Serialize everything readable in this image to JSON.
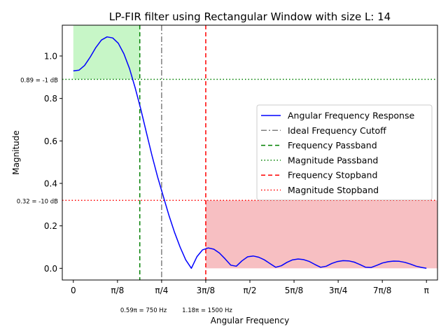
{
  "chart_data": {
    "type": "line",
    "title": "LP-FIR filter using Rectangular Window with size L: 14",
    "xlabel": "Angular Frequency",
    "ylabel": "Magnitude",
    "xlim": [
      -0.0982,
      3.2398
    ],
    "ylim": [
      -0.055,
      1.145
    ],
    "x_ticks": [
      {
        "value": 0,
        "label": "0"
      },
      {
        "value": 0.3927,
        "label": "π/8"
      },
      {
        "value": 0.7854,
        "label": "π/4"
      },
      {
        "value": 1.1781,
        "label": "3π/8"
      },
      {
        "value": 1.5708,
        "label": "π/2"
      },
      {
        "value": 1.9635,
        "label": "5π/8"
      },
      {
        "value": 2.3562,
        "label": "3π/4"
      },
      {
        "value": 2.7489,
        "label": "7π/8"
      },
      {
        "value": 3.1416,
        "label": "π"
      }
    ],
    "y_ticks": [
      {
        "value": 0.0,
        "label": "0.0"
      },
      {
        "value": 0.2,
        "label": "0.2"
      },
      {
        "value": 0.4,
        "label": "0.4"
      },
      {
        "value": 0.6,
        "label": "0.6"
      },
      {
        "value": 0.8,
        "label": "0.8"
      },
      {
        "value": 1.0,
        "label": "1.0"
      }
    ],
    "series": [
      {
        "name": "Angular Frequency Response",
        "color": "#0000ff",
        "style": "solid",
        "x": [
          0.0,
          0.05,
          0.1,
          0.15,
          0.2,
          0.25,
          0.3,
          0.35,
          0.4,
          0.45,
          0.5,
          0.55,
          0.6,
          0.65,
          0.7,
          0.75,
          0.8,
          0.85,
          0.9,
          0.95,
          1.0,
          1.05,
          1.1,
          1.15,
          1.2,
          1.25,
          1.3,
          1.35,
          1.4,
          1.45,
          1.5,
          1.55,
          1.6,
          1.65,
          1.7,
          1.75,
          1.8,
          1.85,
          1.9,
          1.95,
          2.0,
          2.05,
          2.1,
          2.15,
          2.2,
          2.25,
          2.3,
          2.35,
          2.4,
          2.45,
          2.5,
          2.55,
          2.6,
          2.65,
          2.7,
          2.75,
          2.8,
          2.85,
          2.9,
          2.95,
          3.0,
          3.05,
          3.1,
          3.1416
        ],
        "y": [
          0.93,
          0.933,
          0.955,
          0.995,
          1.04,
          1.075,
          1.09,
          1.085,
          1.06,
          1.01,
          0.94,
          0.85,
          0.75,
          0.64,
          0.53,
          0.43,
          0.34,
          0.25,
          0.17,
          0.1,
          0.04,
          0.0,
          0.055,
          0.087,
          0.096,
          0.09,
          0.072,
          0.045,
          0.015,
          0.01,
          0.035,
          0.054,
          0.058,
          0.052,
          0.04,
          0.022,
          0.005,
          0.012,
          0.028,
          0.04,
          0.044,
          0.041,
          0.032,
          0.018,
          0.005,
          0.01,
          0.023,
          0.032,
          0.036,
          0.035,
          0.029,
          0.018,
          0.005,
          0.004,
          0.014,
          0.025,
          0.031,
          0.034,
          0.033,
          0.028,
          0.02,
          0.01,
          0.004,
          0.0
        ]
      }
    ],
    "vertical_lines": [
      {
        "name": "Ideal Frequency Cutoff",
        "x": 0.7854,
        "color": "#808080",
        "style": "dashdot"
      },
      {
        "name": "Frequency Passband",
        "x": 0.5912,
        "color": "#008000",
        "style": "dashed"
      },
      {
        "name": "Frequency Stopband",
        "x": 1.1781,
        "color": "#ff0000",
        "style": "dashed"
      }
    ],
    "horizontal_lines": [
      {
        "name": "Magnitude Passband",
        "y": 0.89,
        "color": "#008000",
        "style": "dotted"
      },
      {
        "name": "Magnitude Stopband",
        "y": 0.32,
        "color": "#ff0000",
        "style": "dotted"
      }
    ],
    "shaded_regions": [
      {
        "x0": 0.0,
        "x1": 0.5912,
        "y0": 0.89,
        "y1": 1.145,
        "color": "#90ee90",
        "opacity": 0.5
      },
      {
        "x0": 1.1781,
        "x1": 3.2398,
        "y0": 0.0,
        "y1": 0.32,
        "color": "#ef7f86",
        "opacity": 0.5
      }
    ],
    "annotations": {
      "passband_mag": {
        "text": "0.89 = -1 dB",
        "color": "#008000"
      },
      "stopband_mag": {
        "text": "0.32 = -10 dB",
        "color": "#ff0000"
      },
      "passband_freq": {
        "text": "0.59π = 750 Hz",
        "color": "#008000"
      },
      "stopband_freq": {
        "text": "1.18π = 1500 Hz",
        "color": "#ff0000"
      }
    },
    "legend": {
      "position": "center-right",
      "entries": [
        {
          "label": "Angular Frequency Response",
          "color": "#0000ff",
          "style": "solid"
        },
        {
          "label": "Ideal Frequency Cutoff",
          "color": "#808080",
          "style": "dashdot"
        },
        {
          "label": "Frequency Passband",
          "color": "#008000",
          "style": "dashed"
        },
        {
          "label": "Magnitude Passband",
          "color": "#008000",
          "style": "dotted"
        },
        {
          "label": "Frequency Stopband",
          "color": "#ff0000",
          "style": "dashed"
        },
        {
          "label": "Magnitude Stopband",
          "color": "#ff0000",
          "style": "dotted"
        }
      ]
    },
    "grid": false
  }
}
